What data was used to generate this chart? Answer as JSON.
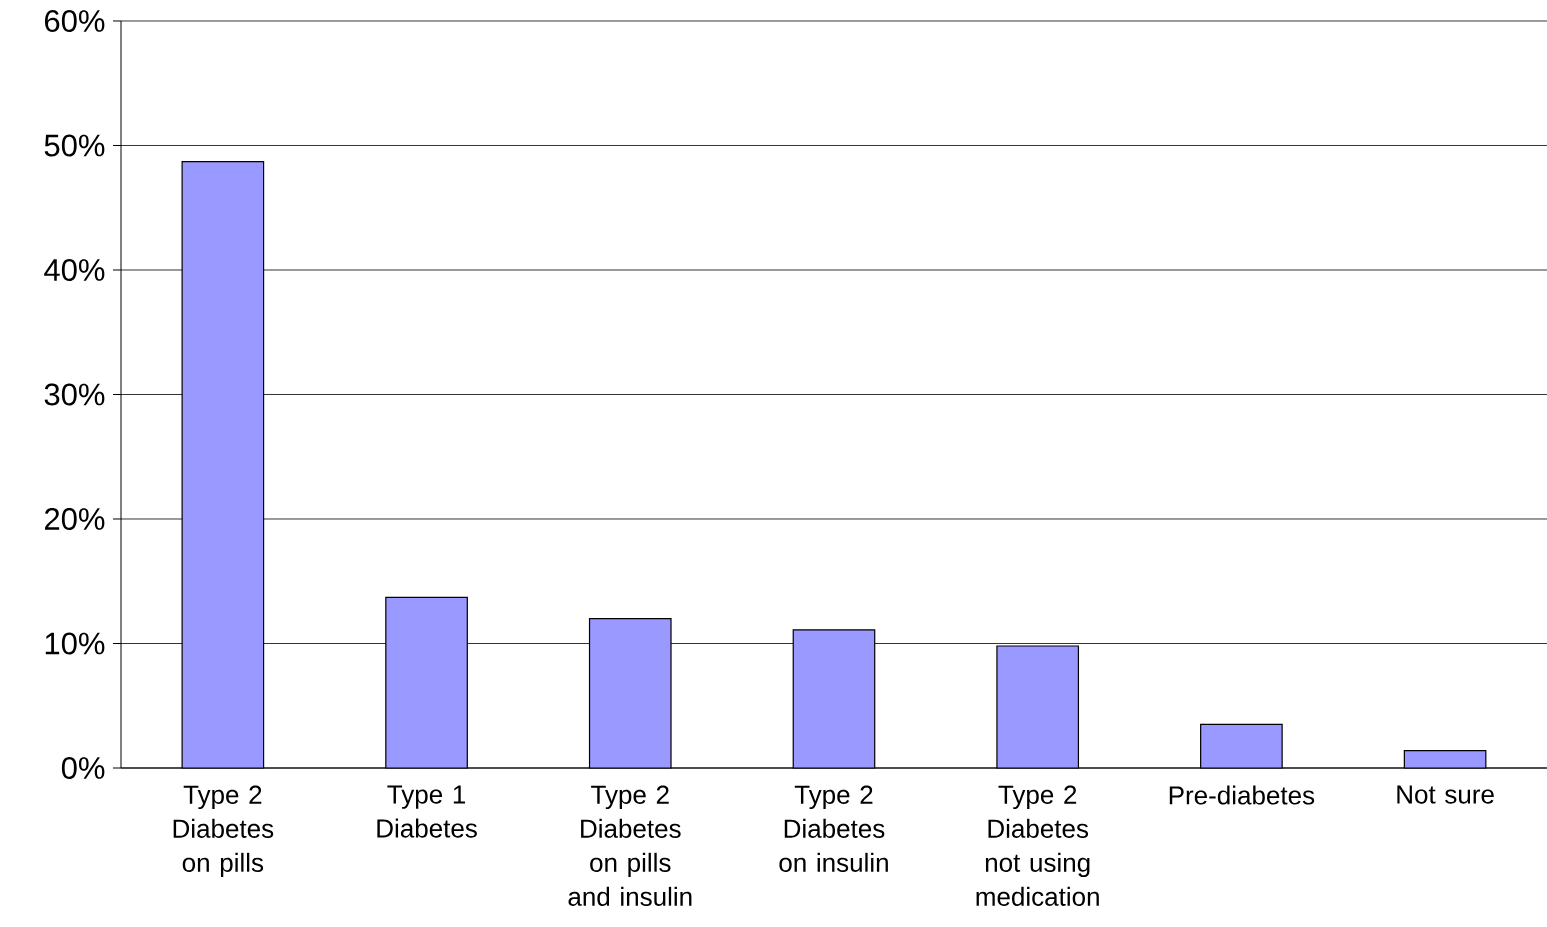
{
  "chart_data": {
    "type": "bar",
    "categories": [
      "Type 2 Diabetes on pills",
      "Type 1 Diabetes",
      "Type 2 Diabetes on pills and insulin",
      "Type 2 Diabetes on insulin",
      "Type 2 Diabetes not using medication",
      "Pre-diabetes",
      "Not sure"
    ],
    "values": [
      48.7,
      13.7,
      12.0,
      11.1,
      9.8,
      3.5,
      1.4
    ],
    "color": "#9999ff",
    "ylim": [
      0,
      60
    ],
    "yticks": [
      {
        "value": 0,
        "label": "0%"
      },
      {
        "value": 10,
        "label": "10%"
      },
      {
        "value": 20,
        "label": "20%"
      },
      {
        "value": 30,
        "label": "30%"
      },
      {
        "value": 40,
        "label": "40%"
      },
      {
        "value": 50,
        "label": "50%"
      },
      {
        "value": 60,
        "label": "60%"
      }
    ],
    "grid": "y"
  }
}
